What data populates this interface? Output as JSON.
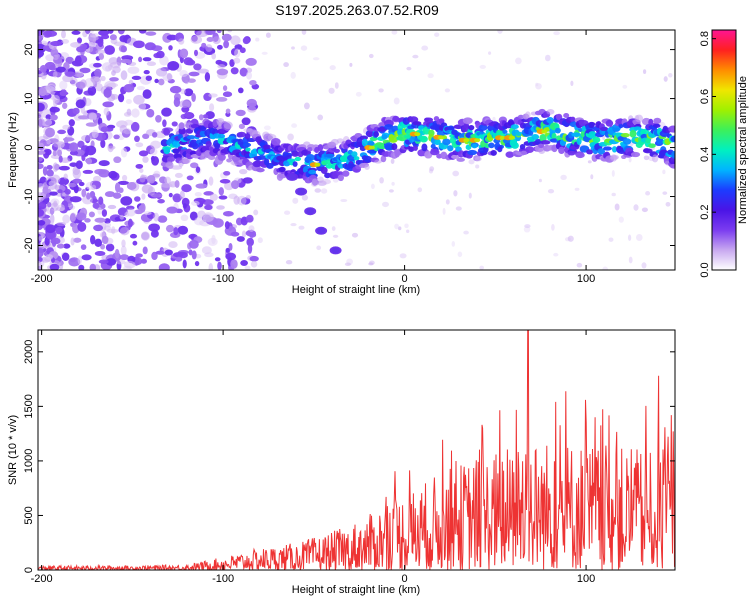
{
  "title": "S197.2025.263.07.52.R09",
  "chart_data": [
    {
      "type": "heatmap",
      "xlabel": "Height of straight line (km)",
      "ylabel": "Frequency (Hz)",
      "xlim": [
        -202,
        149
      ],
      "ylim": [
        -25,
        24
      ],
      "xticks": [
        -200,
        -100,
        0,
        100
      ],
      "yticks": [
        -20,
        -10,
        0,
        10,
        20
      ],
      "colorbar": {
        "label": "Normalized spectral amplitude",
        "range": [
          0,
          0.83
        ],
        "ticks": [
          0.0,
          0.2,
          0.4,
          0.6,
          0.8
        ],
        "colors": [
          "#ffffff",
          "#c8a8f0",
          "#7b3cf0",
          "#4a14e6",
          "#1c3cff",
          "#00b4ff",
          "#00f0c0",
          "#3cf05a",
          "#a0f000",
          "#f0e600",
          "#ff8c00",
          "#ff2020",
          "#ff1493"
        ]
      },
      "ridge": {
        "points": [
          [
            -130,
            0
          ],
          [
            -120,
            1
          ],
          [
            -110,
            2
          ],
          [
            -100,
            1.5
          ],
          [
            -90,
            0.5
          ],
          [
            -80,
            -1
          ],
          [
            -70,
            -2
          ],
          [
            -60,
            -3
          ],
          [
            -50,
            -3.5
          ],
          [
            -40,
            -3
          ],
          [
            -30,
            -2
          ],
          [
            -20,
            0
          ],
          [
            -10,
            2
          ],
          [
            0,
            3
          ],
          [
            10,
            2.5
          ],
          [
            20,
            2
          ],
          [
            30,
            1.5
          ],
          [
            40,
            1.5
          ],
          [
            50,
            2
          ],
          [
            60,
            2
          ],
          [
            70,
            3
          ],
          [
            80,
            3.5
          ],
          [
            90,
            2.5
          ],
          [
            100,
            2
          ],
          [
            110,
            1.5
          ],
          [
            120,
            2
          ],
          [
            130,
            2
          ],
          [
            140,
            1.5
          ],
          [
            149,
            0
          ]
        ]
      },
      "branch": {
        "points": [
          [
            -62,
            -6
          ],
          [
            -57,
            -9
          ],
          [
            -52,
            -13
          ],
          [
            -46,
            -17
          ],
          [
            -38,
            -21
          ]
        ]
      }
    },
    {
      "type": "line",
      "xlabel": "Height of straight line (km)",
      "ylabel": "SNR (10 * v/v)",
      "xlim": [
        -202,
        149
      ],
      "ylim": [
        0,
        2200
      ],
      "xticks": [
        -200,
        -100,
        0,
        100
      ],
      "yticks": [
        0,
        500,
        1000,
        1500,
        2000
      ],
      "color": "#ee3333",
      "envelope": [
        [
          -202,
          40
        ],
        [
          -150,
          40
        ],
        [
          -120,
          50
        ],
        [
          -100,
          120
        ],
        [
          -80,
          200
        ],
        [
          -60,
          250
        ],
        [
          -40,
          350
        ],
        [
          -20,
          500
        ],
        [
          -5,
          700
        ],
        [
          0,
          700
        ],
        [
          10,
          800
        ],
        [
          20,
          900
        ],
        [
          40,
          1050
        ],
        [
          60,
          1150
        ],
        [
          65,
          1300
        ],
        [
          70,
          1200
        ],
        [
          90,
          1200
        ],
        [
          110,
          1150
        ],
        [
          130,
          1100
        ],
        [
          149,
          1050
        ]
      ],
      "peaks": [
        [
          68,
          2200
        ],
        [
          140,
          1780
        ],
        [
          105,
          1400
        ],
        [
          147,
          1420
        ],
        [
          43,
          1300
        ]
      ]
    }
  ]
}
